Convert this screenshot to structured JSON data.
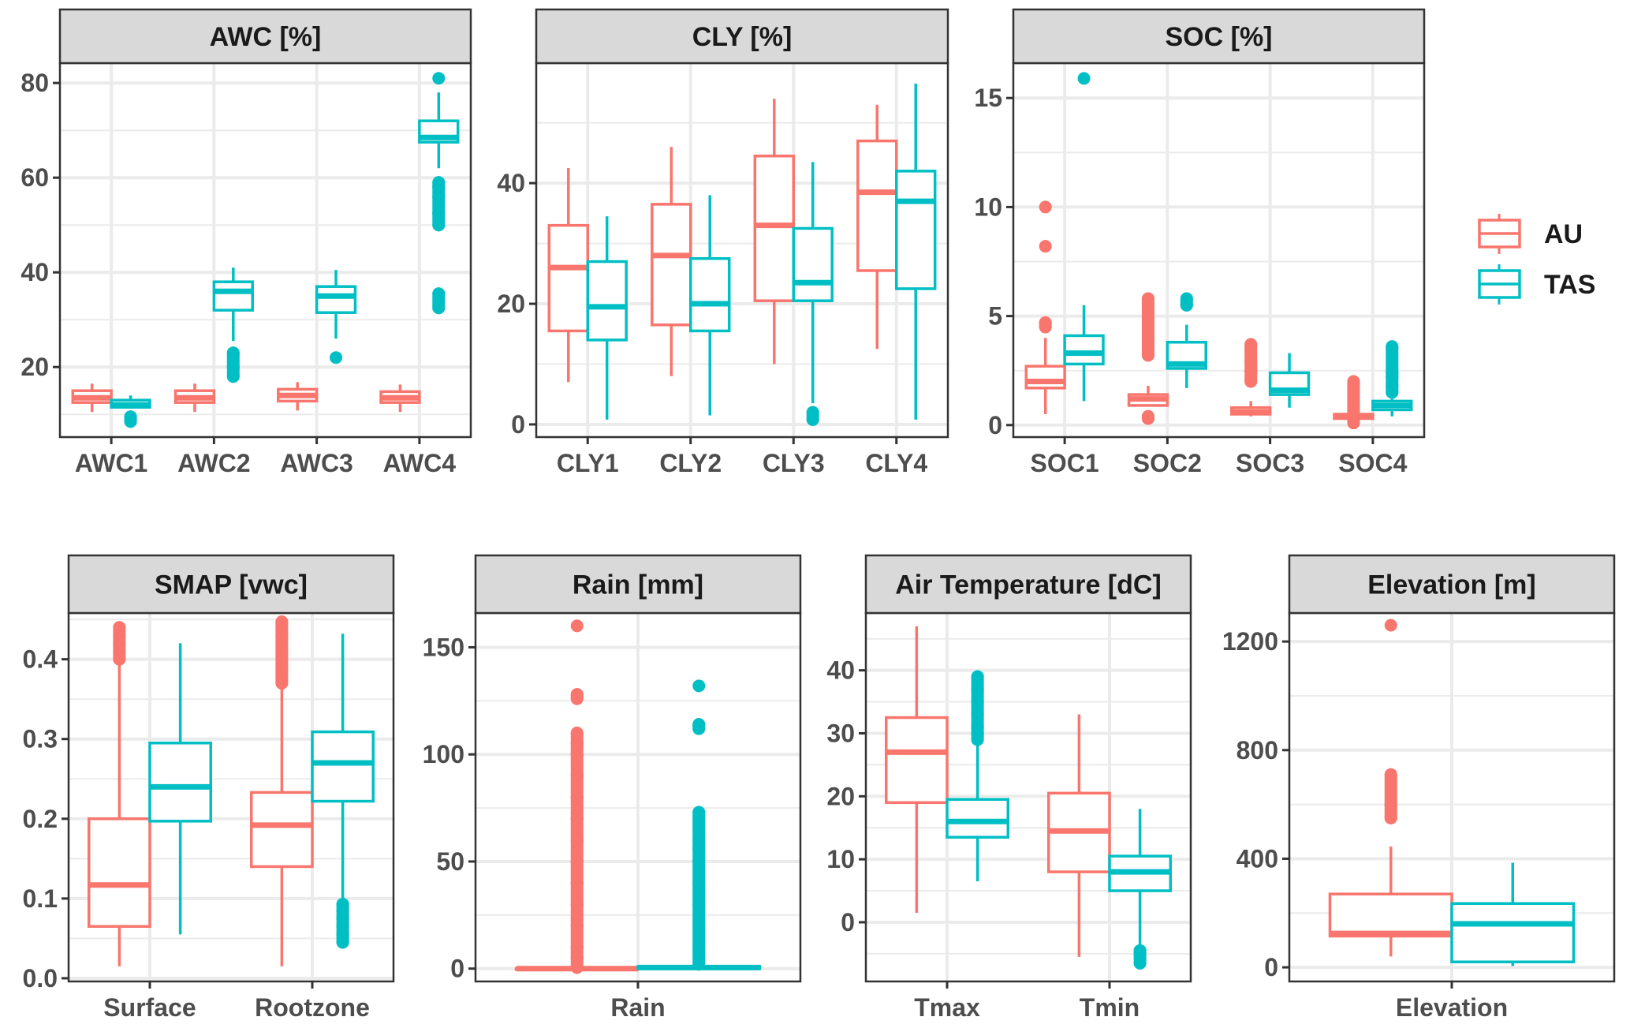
{
  "chart_data": {
    "type": "boxplot",
    "title": "",
    "legend": {
      "position": "right",
      "entries": [
        {
          "name": "AU",
          "color": "#F8766D"
        },
        {
          "name": "TAS",
          "color": "#00BFC4"
        }
      ]
    },
    "grid": true,
    "panels": [
      {
        "title": "AWC [%]",
        "categories": [
          "AWC1",
          "AWC2",
          "AWC3",
          "AWC4"
        ],
        "ylim": [
          5.2,
          84.2
        ],
        "yticks": [
          20,
          40,
          60,
          80
        ],
        "yticklabels": [
          "20",
          "40",
          "60",
          "80"
        ],
        "series": [
          {
            "name": "AU",
            "boxes": [
              {
                "low": 10.5,
                "q1": 12.5,
                "median": 13.5,
                "q3": 15,
                "high": 16.5,
                "outliers": []
              },
              {
                "low": 10.5,
                "q1": 12.5,
                "median": 13.5,
                "q3": 15,
                "high": 16.5,
                "outliers": []
              },
              {
                "low": 10.8,
                "q1": 12.8,
                "median": 14,
                "q3": 15.3,
                "high": 16.8,
                "outliers": []
              },
              {
                "low": 10.5,
                "q1": 12.5,
                "median": 13.5,
                "q3": 14.8,
                "high": 16.3,
                "outliers": []
              }
            ]
          },
          {
            "name": "TAS",
            "boxes": [
              {
                "low": 11.5,
                "q1": 11.5,
                "median": 12,
                "q3": 13,
                "high": 14,
                "outliers": [
                  8.5,
                  9.5
                ]
              },
              {
                "low": 25.5,
                "q1": 32,
                "median": 36,
                "q3": 38,
                "high": 41,
                "outliers": [
                  18,
                  20,
                  23
                ]
              },
              {
                "low": 26,
                "q1": 31.5,
                "median": 35,
                "q3": 37,
                "high": 40.5,
                "outliers": [
                  22
                ]
              },
              {
                "low": 62,
                "q1": 67.5,
                "median": 68.5,
                "q3": 72,
                "high": 78,
                "outliers": [
                  32.5,
                  35.5,
                  50,
                  52.5,
                  56,
                  58,
                  59,
                  81
                ]
              }
            ]
          }
        ]
      },
      {
        "title": "CLY [%]",
        "categories": [
          "CLY1",
          "CLY2",
          "CLY3",
          "CLY4"
        ],
        "ylim": [
          -2.1,
          59.9
        ],
        "yticks": [
          0,
          20,
          40
        ],
        "yticklabels": [
          "0",
          "20",
          "40"
        ],
        "series": [
          {
            "name": "AU",
            "boxes": [
              {
                "low": 7,
                "q1": 15.5,
                "median": 26,
                "q3": 33,
                "high": 42.5,
                "outliers": []
              },
              {
                "low": 8,
                "q1": 16.5,
                "median": 28,
                "q3": 36.5,
                "high": 46,
                "outliers": []
              },
              {
                "low": 10,
                "q1": 20.5,
                "median": 33,
                "q3": 44.5,
                "high": 54,
                "outliers": []
              },
              {
                "low": 12.5,
                "q1": 25.5,
                "median": 38.5,
                "q3": 47,
                "high": 53,
                "outliers": []
              }
            ]
          },
          {
            "name": "TAS",
            "boxes": [
              {
                "low": 0.8,
                "q1": 14,
                "median": 19.5,
                "q3": 27,
                "high": 34.5,
                "outliers": []
              },
              {
                "low": 1.5,
                "q1": 15.5,
                "median": 20,
                "q3": 27.5,
                "high": 38,
                "outliers": []
              },
              {
                "low": 3.5,
                "q1": 20.5,
                "median": 23.5,
                "q3": 32.5,
                "high": 43.5,
                "outliers": [
                  0.8,
                  2
                ]
              },
              {
                "low": 0.8,
                "q1": 22.5,
                "median": 37,
                "q3": 42,
                "high": 56.5,
                "outliers": []
              }
            ]
          }
        ]
      },
      {
        "title": "SOC [%]",
        "categories": [
          "SOC1",
          "SOC2",
          "SOC3",
          "SOC4"
        ],
        "ylim": [
          -0.55,
          16.6
        ],
        "yticks": [
          0,
          5,
          10,
          15
        ],
        "yticklabels": [
          "0",
          "5",
          "10",
          "15"
        ],
        "series": [
          {
            "name": "AU",
            "boxes": [
              {
                "low": 0.5,
                "q1": 1.7,
                "median": 2.0,
                "q3": 2.7,
                "high": 4.0,
                "outliers": [
                  4.5,
                  4.7,
                  8.2,
                  10.0
                ]
              },
              {
                "low": 0.9,
                "q1": 0.9,
                "median": 1.2,
                "q3": 1.4,
                "high": 1.8,
                "outliers": [
                  0.3,
                  0.4,
                  3.2,
                  3.9,
                  4.1,
                  5.0,
                  5.8
                ]
              },
              {
                "low": 0.4,
                "q1": 0.5,
                "median": 0.6,
                "q3": 0.8,
                "high": 1.1,
                "outliers": [
                  2.0,
                  2.5,
                  2.9,
                  3.7
                ]
              },
              {
                "low": 0.2,
                "q1": 0.3,
                "median": 0.4,
                "q3": 0.5,
                "high": 0.6,
                "outliers": [
                  0.1,
                  0.7,
                  0.9,
                  1.1,
                  1.3,
                  1.6,
                  2.0
                ]
              }
            ]
          },
          {
            "name": "TAS",
            "boxes": [
              {
                "low": 1.1,
                "q1": 2.8,
                "median": 3.3,
                "q3": 4.1,
                "high": 5.5,
                "outliers": [
                  15.9
                ]
              },
              {
                "low": 1.7,
                "q1": 2.6,
                "median": 2.8,
                "q3": 3.8,
                "high": 4.6,
                "outliers": [
                  5.5,
                  5.8
                ]
              },
              {
                "low": 0.8,
                "q1": 1.4,
                "median": 1.6,
                "q3": 2.4,
                "high": 3.3,
                "outliers": []
              },
              {
                "low": 0.4,
                "q1": 0.7,
                "median": 0.9,
                "q3": 1.1,
                "high": 1.2,
                "outliers": [
                  1.5,
                  1.8,
                  2.2,
                  2.4,
                  3.6
                ]
              }
            ]
          }
        ]
      },
      {
        "title": "SMAP [vwc]",
        "categories": [
          "Surface",
          "Rootzone"
        ],
        "ylim": [
          -0.004,
          0.458
        ],
        "yticks": [
          0.0,
          0.1,
          0.2,
          0.3,
          0.4
        ],
        "yticklabels": [
          "0.0",
          "0.1",
          "0.2",
          "0.3",
          "0.4"
        ],
        "series": [
          {
            "name": "AU",
            "boxes": [
              {
                "low": 0.015,
                "q1": 0.065,
                "median": 0.117,
                "q3": 0.2,
                "high": 0.395,
                "outliers": [
                  0.4,
                  0.41,
                  0.42,
                  0.43,
                  0.44
                ]
              },
              {
                "low": 0.015,
                "q1": 0.14,
                "median": 0.192,
                "q3": 0.233,
                "high": 0.365,
                "outliers": [
                  0.37,
                  0.39,
                  0.41,
                  0.43,
                  0.447
                ]
              }
            ]
          },
          {
            "name": "TAS",
            "boxes": [
              {
                "low": 0.055,
                "q1": 0.197,
                "median": 0.24,
                "q3": 0.295,
                "high": 0.42,
                "outliers": []
              },
              {
                "low": 0.095,
                "q1": 0.222,
                "median": 0.27,
                "q3": 0.309,
                "high": 0.432,
                "outliers": [
                  0.045,
                  0.055,
                  0.065,
                  0.075,
                  0.085,
                  0.093
                ]
              }
            ]
          }
        ]
      },
      {
        "title": "Rain [mm]",
        "categories": [
          "Rain"
        ],
        "ylim": [
          -6,
          166
        ],
        "yticks": [
          0,
          50,
          100,
          150
        ],
        "yticklabels": [
          "0",
          "50",
          "100",
          "150"
        ],
        "series": [
          {
            "name": "AU",
            "boxes": [
              {
                "low": 0,
                "q1": 0,
                "median": 0,
                "q3": 0,
                "high": 0.5,
                "outliers": [
                  0.5,
                  5,
                  10,
                  20,
                  30,
                  40,
                  50,
                  60,
                  70,
                  80,
                  90,
                  100,
                  105,
                  110,
                  126,
                  128,
                  160
                ]
              }
            ]
          },
          {
            "name": "TAS",
            "boxes": [
              {
                "low": 0,
                "q1": 0,
                "median": 0.5,
                "q3": 1,
                "high": 2,
                "outliers": [
                  2,
                  10,
                  20,
                  30,
                  40,
                  50,
                  56,
                  60,
                  65,
                  70,
                  73,
                  112,
                  114,
                  132
                ]
              }
            ]
          }
        ]
      },
      {
        "title": "Air Temperature [dC]",
        "categories": [
          "Tmax",
          "Tmin"
        ],
        "ylim": [
          -9.4,
          49.1
        ],
        "yticks": [
          0,
          10,
          20,
          30,
          40
        ],
        "yticklabels": [
          "0",
          "10",
          "20",
          "30",
          "40"
        ],
        "series": [
          {
            "name": "AU",
            "boxes": [
              {
                "low": 1.5,
                "q1": 19,
                "median": 27,
                "q3": 32.5,
                "high": 47,
                "outliers": []
              },
              {
                "low": -5.5,
                "q1": 8,
                "median": 14.5,
                "q3": 20.5,
                "high": 33,
                "outliers": []
              }
            ]
          },
          {
            "name": "TAS",
            "boxes": [
              {
                "low": 6.5,
                "q1": 13.5,
                "median": 16,
                "q3": 19.5,
                "high": 28.5,
                "outliers": [
                  29,
                  30,
                  31,
                  33,
                  35,
                  37,
                  39
                ]
              },
              {
                "low": -3.5,
                "q1": 5,
                "median": 8,
                "q3": 10.5,
                "high": 18,
                "outliers": [
                  -4.5,
                  -5,
                  -6.5
                ]
              }
            ]
          }
        ]
      },
      {
        "title": "Elevation [m]",
        "categories": [
          "Elevation"
        ],
        "ylim": [
          -52,
          1305
        ],
        "yticks": [
          0,
          400,
          800,
          1200
        ],
        "yticklabels": [
          "0",
          "400",
          "800",
          "1200"
        ],
        "series": [
          {
            "name": "AU",
            "boxes": [
              {
                "low": 40,
                "q1": 115,
                "median": 125,
                "q3": 270,
                "high": 445,
                "outliers": [
                  550,
                  600,
                  710,
                  1260
                ]
              }
            ]
          },
          {
            "name": "TAS",
            "boxes": [
              {
                "low": 5,
                "q1": 20,
                "median": 160,
                "q3": 235,
                "high": 385,
                "outliers": []
              }
            ]
          }
        ]
      }
    ]
  }
}
